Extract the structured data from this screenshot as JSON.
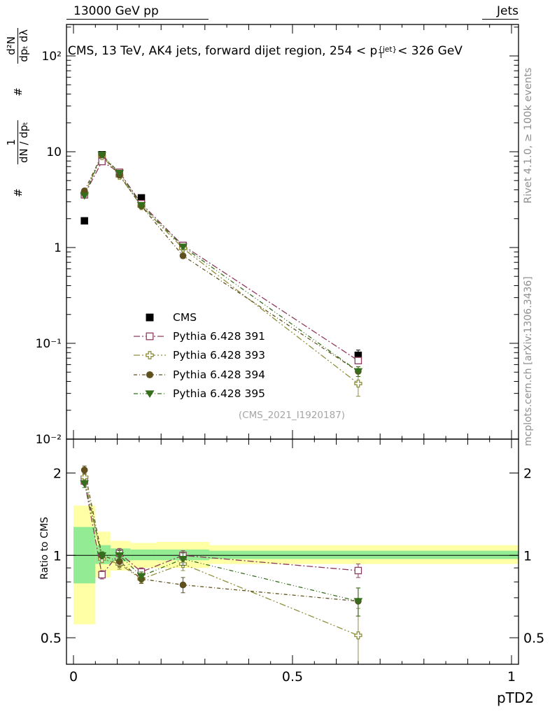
{
  "chart_data": {
    "type": "line",
    "header_left": "13000 GeV pp",
    "header_right": "Jets",
    "title": {
      "pre": "CMS, 13 TeV, AK4 jets, forward dijet region, 254 < p",
      "sup": "{jet}",
      "sub": "T",
      "post": "< 326 GeV"
    },
    "xlabel": "pTD2",
    "ylabel_ratio": "Ratio to CMS",
    "ylabel_main": {
      "hash1": "#",
      "num1": "1",
      "den1": "dN / dpₜ",
      "hash2": "#",
      "num2": "d²N",
      "den2": "dpₜ dλ"
    },
    "side_notes": {
      "rivet": "Rivet 4.1.0, ≥ 100k events",
      "mcplots": "mcplots.cern.ch [arXiv:1306.3436]"
    },
    "watermark": "(CMS_2021_I1920187)",
    "axes": {
      "xlim": [
        -0.016,
        1.016
      ],
      "ylim_main": [
        0.01,
        213
      ],
      "ylim_ratio": [
        0.4,
        2.66
      ],
      "x_ticks": [
        {
          "v": 0,
          "label": "0"
        },
        {
          "v": 0.5,
          "label": "0.5"
        },
        {
          "v": 1,
          "label": "1"
        }
      ],
      "x_minor_step": 0.05,
      "y_ticks_main": [
        {
          "v": 100,
          "label": "10²"
        },
        {
          "v": 10,
          "label": "10"
        },
        {
          "v": 1,
          "label": "1"
        },
        {
          "v": 0.1,
          "label": "10⁻¹"
        },
        {
          "v": 0.01,
          "label": "10⁻²"
        }
      ],
      "y_ticks_ratio": [
        {
          "v": 2,
          "label": "2"
        },
        {
          "v": 1,
          "label": "1"
        },
        {
          "v": 0.5,
          "label": "0.5"
        }
      ],
      "y_minor_ratio": [
        0.4,
        0.6,
        0.7,
        0.8,
        0.9
      ],
      "ratio_line": 1
    },
    "bands": {
      "bin_edges": [
        0,
        0.05,
        0.085,
        0.13,
        0.19,
        0.31,
        1.016
      ],
      "yellow": [
        [
          0.56,
          1.52
        ],
        [
          0.83,
          1.22
        ],
        [
          0.88,
          1.13
        ],
        [
          0.9,
          1.11
        ],
        [
          0.9,
          1.12
        ],
        [
          0.93,
          1.09
        ]
      ],
      "green": [
        [
          0.79,
          1.27
        ],
        [
          0.93,
          1.09
        ],
        [
          0.95,
          1.06
        ],
        [
          0.96,
          1.05
        ],
        [
          0.96,
          1.05
        ],
        [
          0.97,
          1.04
        ]
      ],
      "yellow_color": "#ffffa6",
      "green_color": "#93ec93"
    },
    "x": [
      0.025,
      0.065,
      0.105,
      0.155,
      0.25,
      0.65
    ],
    "series": [
      {
        "name": "CMS",
        "color": "#000000",
        "marker": "square",
        "filled": true,
        "main": [
          1.9,
          9.3,
          6.0,
          3.3,
          1.05,
          0.075
        ],
        "main_err": [
          0.12,
          0.35,
          0.25,
          0.15,
          0.06,
          0.01
        ]
      },
      {
        "name": "Pythia 6.428 391",
        "color": "#8e3b60",
        "marker": "square",
        "filled": false,
        "dash": "9,3,2,3",
        "main": [
          3.55,
          7.9,
          6.1,
          2.87,
          1.05,
          0.066
        ],
        "main_err": [
          0.1,
          0.25,
          0.2,
          0.1,
          0.04,
          0.005
        ],
        "ratio": [
          1.87,
          0.85,
          1.02,
          0.87,
          1.0,
          0.88
        ],
        "ratio_err": [
          0.06,
          0.03,
          0.04,
          0.03,
          0.04,
          0.05
        ]
      },
      {
        "name": "Pythia 6.428 393",
        "color": "#8f8f3d",
        "marker": "cross",
        "filled": false,
        "dash": "9,3,2,3,2,3",
        "main": [
          3.67,
          9.0,
          5.6,
          2.71,
          0.98,
          0.038
        ],
        "main_err": [
          0.1,
          0.25,
          0.2,
          0.1,
          0.05,
          0.01
        ],
        "ratio": [
          1.93,
          0.97,
          0.93,
          0.82,
          0.93,
          0.51
        ],
        "ratio_err": [
          0.06,
          0.03,
          0.04,
          0.03,
          0.05,
          0.13
        ]
      },
      {
        "name": "Pythia 6.428 394",
        "color": "#60501f",
        "marker": "circle",
        "filled": true,
        "dash": "5,3,1,3",
        "main": [
          3.9,
          9.3,
          5.7,
          2.71,
          0.82,
          0.051
        ],
        "main_err": [
          0.12,
          0.3,
          0.2,
          0.1,
          0.05,
          0.006
        ],
        "ratio": [
          2.05,
          1.0,
          0.95,
          0.82,
          0.78,
          0.68
        ],
        "ratio_err": [
          0.07,
          0.03,
          0.04,
          0.03,
          0.05,
          0.08
        ]
      },
      {
        "name": "Pythia 6.428 395",
        "color": "#356e1c",
        "marker": "triangle-down",
        "filled": true,
        "dash": "6,3,1,3,1,3",
        "main": [
          3.48,
          9.3,
          6.0,
          2.77,
          1.02,
          0.051
        ],
        "main_err": [
          0.1,
          0.3,
          0.2,
          0.1,
          0.05,
          0.006
        ],
        "ratio": [
          1.83,
          1.0,
          1.0,
          0.84,
          0.97,
          0.68
        ],
        "ratio_err": [
          0.06,
          0.03,
          0.04,
          0.03,
          0.05,
          0.08
        ]
      }
    ]
  }
}
